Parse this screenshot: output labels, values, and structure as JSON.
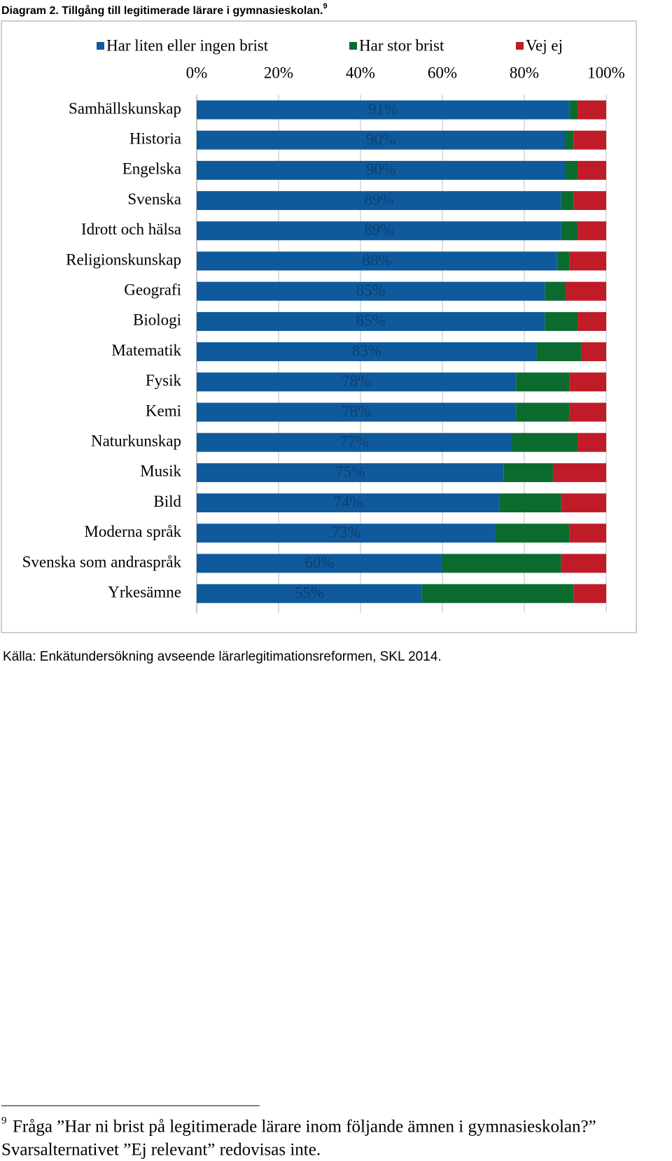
{
  "header": {
    "title": "Diagram 2. Tillgång till legitimerade lärare i gymnasieskolan.",
    "footnote_ref": "9"
  },
  "chart_data": {
    "type": "stacked_bar_horizontal",
    "categories": [
      "Samhällskunskap",
      "Historia",
      "Engelska",
      "Svenska",
      "Idrott och hälsa",
      "Religionskunskap",
      "Geografi",
      "Biologi",
      "Matematik",
      "Fysik",
      "Kemi",
      "Naturkunskap",
      "Musik",
      "Bild",
      "Moderna språk",
      "Svenska som andraspråk",
      "Yrkesämne"
    ],
    "series": [
      {
        "name": "Har liten eller ingen brist",
        "color": "#0e5a9c",
        "values": [
          91,
          90,
          90,
          89,
          89,
          88,
          85,
          85,
          83,
          78,
          78,
          77,
          75,
          74,
          73,
          60,
          55
        ],
        "value_labels": [
          "91%",
          "90%",
          "90%",
          "89%",
          "89%",
          "88%",
          "85%",
          "85%",
          "83%",
          "78%",
          "78%",
          "77%",
          "75%",
          "74%",
          "73%",
          "60%",
          "55%"
        ]
      },
      {
        "name": "Har stor brist",
        "color": "#0b6b2f",
        "values": [
          2,
          2,
          3,
          3,
          4,
          3,
          5,
          8,
          11,
          13,
          13,
          16,
          12,
          15,
          18,
          29,
          37
        ]
      },
      {
        "name": "Vej ej",
        "color": "#c01c28",
        "values": [
          7,
          8,
          7,
          8,
          7,
          9,
          10,
          7,
          6,
          9,
          9,
          7,
          13,
          11,
          9,
          11,
          8
        ]
      }
    ],
    "xlim": [
      0,
      100
    ],
    "xticks": [
      {
        "value": 0,
        "label": "0%"
      },
      {
        "value": 20,
        "label": "20%"
      },
      {
        "value": 40,
        "label": "40%"
      },
      {
        "value": 60,
        "label": "60%"
      },
      {
        "value": 80,
        "label": "80%"
      },
      {
        "value": 100,
        "label": "100%"
      }
    ],
    "grid": true,
    "legend": "top"
  },
  "source": "Källa: Enkätundersökning avseende lärarlegitimationsreformen, SKL 2014.",
  "footnote": {
    "number": "9",
    "lines": [
      "Fråga ”Har ni brist på legitimerade lärare inom följande ämnen i gymnasieskolan?”",
      "Svarsalternativet ”Ej relevant” redovisas inte."
    ]
  }
}
